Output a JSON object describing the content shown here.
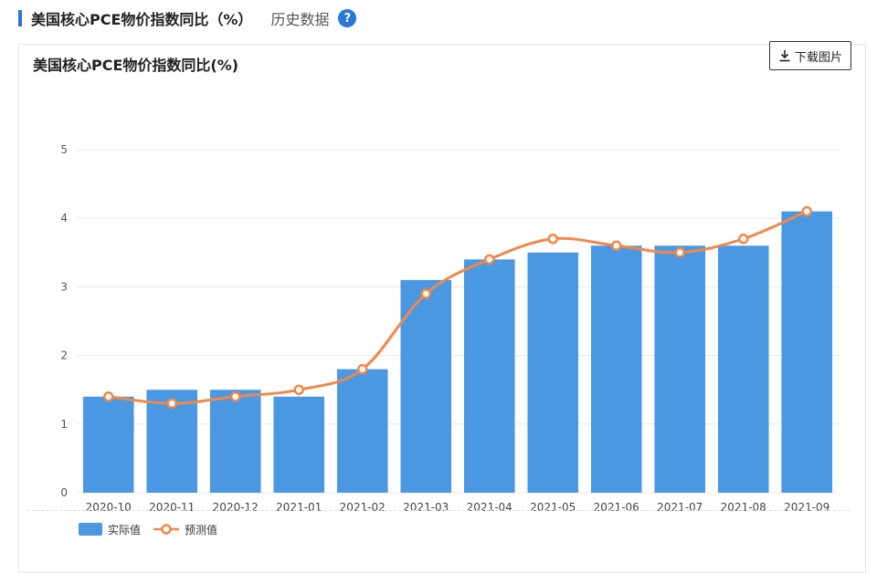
{
  "header": {
    "title": "美国核心PCE物价指数同比（%）",
    "history_link": "历史数据",
    "help_icon": "?"
  },
  "card": {
    "chart_title": "美国核心PCE物价指数同比(%)",
    "download_label": "下载图片"
  },
  "colors": {
    "accent": "#2a77d6",
    "bar": "#4a97e2",
    "line": "#f0884a",
    "grid": "#e8e8e8"
  },
  "chart_data": {
    "type": "bar",
    "categories": [
      "2020-10",
      "2020-11",
      "2020-12",
      "2021-01",
      "2021-02",
      "2021-03",
      "2021-04",
      "2021-05",
      "2021-06",
      "2021-07",
      "2021-08",
      "2021-09"
    ],
    "series": [
      {
        "name": "实际值",
        "type": "bar",
        "values": [
          1.4,
          1.5,
          1.5,
          1.4,
          1.8,
          3.1,
          3.4,
          3.5,
          3.6,
          3.6,
          3.6,
          4.1
        ]
      },
      {
        "name": "预测值",
        "type": "line",
        "values": [
          1.4,
          1.3,
          1.4,
          1.5,
          1.8,
          2.9,
          3.4,
          3.7,
          3.6,
          3.5,
          3.7,
          4.1
        ]
      }
    ],
    "yticks": [
      0,
      1,
      2,
      3,
      4,
      5
    ],
    "ylim": [
      0,
      5
    ],
    "grid": true,
    "legend_position": "bottom-left",
    "title": "美国核心PCE物价指数同比(%)"
  }
}
